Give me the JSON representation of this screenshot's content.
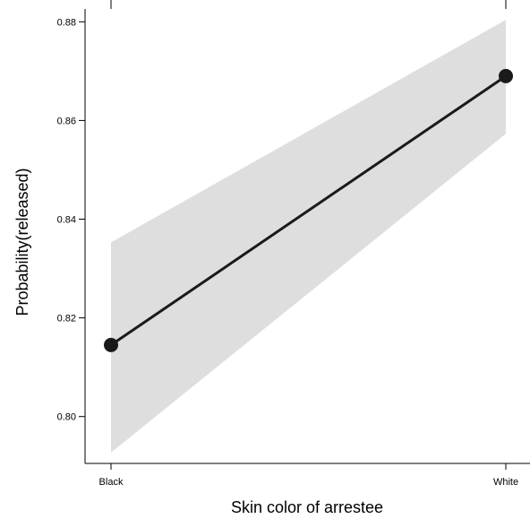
{
  "chart_data": {
    "type": "line",
    "title": "",
    "xlabel": "Skin color of arrestee",
    "ylabel": "Probability(released)",
    "categories": [
      "Black",
      "White"
    ],
    "series": [
      {
        "values": [
          0.8145,
          0.869
        ],
        "lower": [
          0.7927,
          0.8573
        ],
        "upper": [
          0.8353,
          0.8804
        ]
      }
    ],
    "yticks": [
      0.8,
      0.82,
      0.84,
      0.86,
      0.88
    ],
    "ytick_labels": [
      "0.80",
      "0.82",
      "0.84",
      "0.86",
      "0.88"
    ],
    "ylim": [
      0.7905,
      0.8826
    ],
    "grid": false,
    "colors": {
      "line": "#1a1a1a",
      "band": "#dedede",
      "frame": "#000000"
    }
  }
}
